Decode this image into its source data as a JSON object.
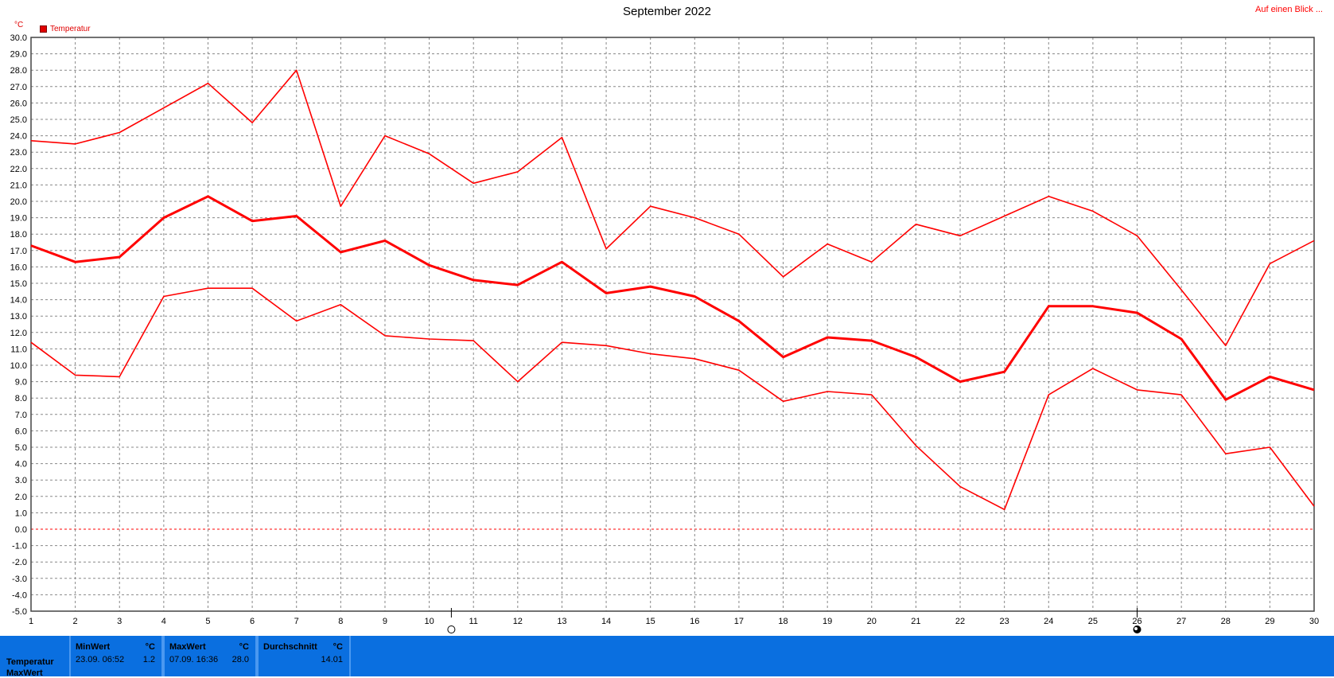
{
  "header": {
    "title": "September 2022",
    "unit": "°C",
    "legend_label": "Temperatur",
    "overview_link": "Auf einen Blick ..."
  },
  "chart_data": {
    "type": "line",
    "title": "September 2022",
    "ylabel": "°C",
    "ylim": [
      -5.0,
      30.0
    ],
    "yticks": [
      "30.0",
      "29.0",
      "28.0",
      "27.0",
      "26.0",
      "25.0",
      "24.0",
      "23.0",
      "22.0",
      "21.0",
      "20.0",
      "19.0",
      "18.0",
      "17.0",
      "16.0",
      "15.0",
      "14.0",
      "13.0",
      "12.0",
      "11.0",
      "10.0",
      "9.0",
      "8.0",
      "7.0",
      "6.0",
      "5.0",
      "4.0",
      "3.0",
      "2.0",
      "1.0",
      "0.0",
      "-1.0",
      "-2.0",
      "-3.0",
      "-4.0",
      "-5.0"
    ],
    "x": [
      1,
      2,
      3,
      4,
      5,
      6,
      7,
      8,
      9,
      10,
      11,
      12,
      13,
      14,
      15,
      16,
      17,
      18,
      19,
      20,
      21,
      22,
      23,
      24,
      25,
      26,
      27,
      28,
      29,
      30
    ],
    "grid": true,
    "legend_position": "top-left",
    "series": [
      {
        "key": "max",
        "values": [
          23.7,
          23.5,
          24.2,
          25.7,
          27.2,
          24.8,
          28.0,
          19.7,
          24.0,
          22.9,
          21.1,
          21.8,
          23.9,
          17.1,
          19.7,
          19.0,
          18.0,
          15.4,
          17.4,
          16.3,
          18.6,
          17.9,
          19.1,
          20.3,
          19.4,
          17.9,
          14.6,
          11.2,
          16.2,
          17.6
        ]
      },
      {
        "key": "avg",
        "values": [
          17.3,
          16.3,
          16.6,
          19.0,
          20.3,
          18.8,
          19.1,
          16.9,
          17.6,
          16.1,
          15.2,
          14.9,
          16.3,
          14.4,
          14.8,
          14.2,
          12.7,
          10.5,
          11.7,
          11.5,
          10.5,
          9.0,
          9.6,
          13.6,
          13.6,
          13.2,
          11.6,
          7.9,
          9.3,
          8.5
        ]
      },
      {
        "key": "min",
        "values": [
          11.4,
          9.4,
          9.3,
          14.2,
          14.7,
          14.7,
          12.7,
          13.7,
          11.8,
          11.6,
          11.5,
          9.0,
          11.4,
          11.2,
          10.7,
          10.4,
          9.7,
          7.8,
          8.4,
          8.2,
          5.1,
          2.6,
          1.2,
          8.2,
          9.8,
          8.5,
          8.2,
          4.6,
          5.0,
          1.4
        ]
      }
    ],
    "color": "#ff0000",
    "moon_phases": [
      {
        "day": 10.5,
        "phase": "full-moon-icon"
      },
      {
        "day": 26,
        "phase": "new-moon-icon"
      }
    ]
  },
  "stats": {
    "row_label_1": "Temperatur",
    "row_label_2": "MaxWert",
    "min": {
      "header": "MinWert",
      "unit": "°C",
      "timestamp": "23.09.  06:52",
      "value": "1.2"
    },
    "max": {
      "header": "MaxWert",
      "unit": "°C",
      "timestamp": "07.09.  16:36",
      "value": "28.0"
    },
    "avg": {
      "header": "Durchschnitt",
      "unit": "°C",
      "value": "14.01"
    }
  }
}
